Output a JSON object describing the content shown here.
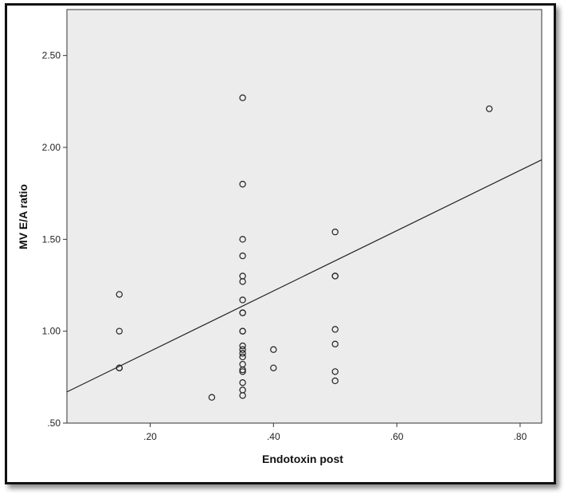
{
  "chart_data": {
    "type": "scatter",
    "xlabel": "Endotoxin post",
    "ylabel": "MV E/A ratio",
    "xlim": [
      0.065,
      0.835
    ],
    "ylim": [
      0.5,
      2.75
    ],
    "x_ticks": [
      0.2,
      0.4,
      0.6,
      0.8
    ],
    "x_tick_labels": [
      ".20",
      ".40",
      ".60",
      ".80"
    ],
    "y_ticks": [
      0.5,
      1.0,
      1.5,
      2.0,
      2.5
    ],
    "y_tick_labels": [
      ".50",
      "1.00",
      "1.50",
      "2.00",
      "2.50"
    ],
    "grid": false,
    "points": [
      {
        "x": 0.15,
        "y": 1.2
      },
      {
        "x": 0.15,
        "y": 1.0
      },
      {
        "x": 0.15,
        "y": 0.8
      },
      {
        "x": 0.15,
        "y": 0.8
      },
      {
        "x": 0.3,
        "y": 0.64
      },
      {
        "x": 0.35,
        "y": 2.27
      },
      {
        "x": 0.35,
        "y": 1.8
      },
      {
        "x": 0.35,
        "y": 1.5
      },
      {
        "x": 0.35,
        "y": 1.41
      },
      {
        "x": 0.35,
        "y": 1.3
      },
      {
        "x": 0.35,
        "y": 1.27
      },
      {
        "x": 0.35,
        "y": 1.17
      },
      {
        "x": 0.35,
        "y": 1.1
      },
      {
        "x": 0.35,
        "y": 1.1
      },
      {
        "x": 0.35,
        "y": 1.0
      },
      {
        "x": 0.35,
        "y": 1.0
      },
      {
        "x": 0.35,
        "y": 0.92
      },
      {
        "x": 0.35,
        "y": 0.9
      },
      {
        "x": 0.35,
        "y": 0.88
      },
      {
        "x": 0.35,
        "y": 0.86
      },
      {
        "x": 0.35,
        "y": 0.82
      },
      {
        "x": 0.35,
        "y": 0.79
      },
      {
        "x": 0.35,
        "y": 0.78
      },
      {
        "x": 0.35,
        "y": 0.72
      },
      {
        "x": 0.35,
        "y": 0.68
      },
      {
        "x": 0.35,
        "y": 0.65
      },
      {
        "x": 0.4,
        "y": 0.9
      },
      {
        "x": 0.4,
        "y": 0.8
      },
      {
        "x": 0.5,
        "y": 1.54
      },
      {
        "x": 0.5,
        "y": 1.3
      },
      {
        "x": 0.5,
        "y": 1.3
      },
      {
        "x": 0.5,
        "y": 1.01
      },
      {
        "x": 0.5,
        "y": 0.93
      },
      {
        "x": 0.5,
        "y": 0.78
      },
      {
        "x": 0.5,
        "y": 0.73
      },
      {
        "x": 0.75,
        "y": 2.21
      }
    ],
    "fit_line": {
      "intercept": 0.563,
      "slope": 1.64
    }
  },
  "colors": {
    "plot_bg": "#ececec",
    "marker_stroke": "#222222",
    "fit_line": "#222222",
    "frame": "#111111"
  }
}
